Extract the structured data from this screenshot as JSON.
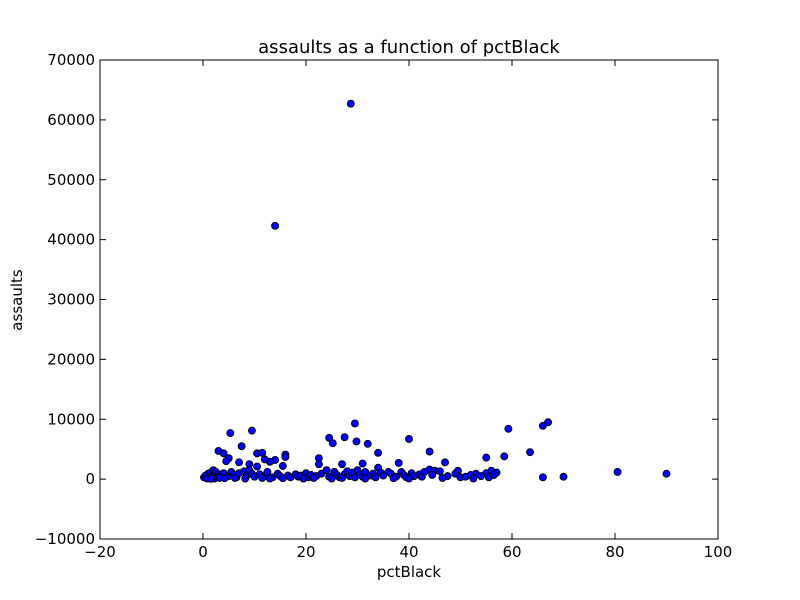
{
  "chart_data": {
    "type": "scatter",
    "title": "assaults as a function of pctBlack",
    "xlabel": "pctBlack",
    "ylabel": "assaults",
    "xlim": [
      -20,
      100
    ],
    "ylim": [
      -10000,
      70000
    ],
    "xticks": [
      "−20",
      "0",
      "20",
      "40",
      "60",
      "80",
      "100"
    ],
    "yticks": [
      "−10000",
      "0",
      "10000",
      "20000",
      "30000",
      "40000",
      "50000",
      "60000",
      "70000"
    ],
    "grid": false,
    "color": "#0000ff",
    "points": [
      [
        28.7,
        62700
      ],
      [
        14.0,
        42300
      ],
      [
        29.5,
        9300
      ],
      [
        67.0,
        9500
      ],
      [
        66.0,
        8900
      ],
      [
        59.3,
        8400
      ],
      [
        9.5,
        8100
      ],
      [
        5.3,
        7700
      ],
      [
        24.5,
        6900
      ],
      [
        27.5,
        7000
      ],
      [
        29.8,
        6300
      ],
      [
        32.0,
        5900
      ],
      [
        25.2,
        6000
      ],
      [
        40.0,
        6700
      ],
      [
        7.5,
        5500
      ],
      [
        63.5,
        4500
      ],
      [
        44.0,
        4600
      ],
      [
        34.0,
        4400
      ],
      [
        3.0,
        4700
      ],
      [
        4.0,
        4300
      ],
      [
        10.5,
        4300
      ],
      [
        11.5,
        4400
      ],
      [
        16.0,
        4100
      ],
      [
        16.0,
        3700
      ],
      [
        58.5,
        3800
      ],
      [
        55.0,
        3600
      ],
      [
        22.5,
        3500
      ],
      [
        12.0,
        3300
      ],
      [
        14.0,
        3200
      ],
      [
        13.0,
        2900
      ],
      [
        5.0,
        3500
      ],
      [
        4.5,
        3000
      ],
      [
        7.0,
        2800
      ],
      [
        9.0,
        2500
      ],
      [
        22.5,
        2500
      ],
      [
        27.0,
        2500
      ],
      [
        31.0,
        2600
      ],
      [
        38.0,
        2700
      ],
      [
        47.0,
        2800
      ],
      [
        15.5,
        2200
      ],
      [
        10.5,
        2100
      ],
      [
        34.0,
        1900
      ],
      [
        36.0,
        1200
      ],
      [
        44.0,
        1600
      ],
      [
        45.0,
        1400
      ],
      [
        46.0,
        1300
      ],
      [
        49.5,
        1400
      ],
      [
        53.0,
        900
      ],
      [
        55.0,
        1000
      ],
      [
        56.0,
        1400
      ],
      [
        57.0,
        1100
      ],
      [
        80.5,
        1200
      ],
      [
        90.0,
        900
      ],
      [
        70.0,
        400
      ],
      [
        66.0,
        300
      ],
      [
        50.0,
        300
      ],
      [
        1.0,
        900
      ],
      [
        1.5,
        1100
      ],
      [
        2.0,
        1500
      ],
      [
        2.5,
        1200
      ],
      [
        3.0,
        800
      ],
      [
        3.5,
        600
      ],
      [
        4.0,
        1000
      ],
      [
        5.0,
        500
      ],
      [
        5.5,
        1200
      ],
      [
        6.0,
        700
      ],
      [
        6.5,
        300
      ],
      [
        7.0,
        1000
      ],
      [
        8.0,
        1300
      ],
      [
        8.5,
        600
      ],
      [
        9.0,
        1500
      ],
      [
        9.5,
        900
      ],
      [
        10.0,
        400
      ],
      [
        11.0,
        800
      ],
      [
        12.0,
        500
      ],
      [
        12.5,
        1200
      ],
      [
        13.5,
        300
      ],
      [
        14.5,
        900
      ],
      [
        15.0,
        500
      ],
      [
        16.5,
        600
      ],
      [
        17.0,
        300
      ],
      [
        18.0,
        800
      ],
      [
        18.5,
        400
      ],
      [
        19.0,
        600
      ],
      [
        20.0,
        1000
      ],
      [
        20.5,
        300
      ],
      [
        21.0,
        700
      ],
      [
        22.0,
        500
      ],
      [
        23.0,
        900
      ],
      [
        24.0,
        1500
      ],
      [
        24.5,
        400
      ],
      [
        25.5,
        1200
      ],
      [
        26.0,
        700
      ],
      [
        26.5,
        300
      ],
      [
        27.5,
        800
      ],
      [
        28.0,
        1300
      ],
      [
        28.5,
        500
      ],
      [
        29.0,
        1100
      ],
      [
        29.5,
        300
      ],
      [
        30.0,
        1500
      ],
      [
        30.5,
        800
      ],
      [
        31.0,
        400
      ],
      [
        31.5,
        1200
      ],
      [
        32.5,
        600
      ],
      [
        33.0,
        900
      ],
      [
        33.5,
        300
      ],
      [
        34.5,
        1100
      ],
      [
        35.0,
        600
      ],
      [
        36.5,
        900
      ],
      [
        37.5,
        400
      ],
      [
        38.5,
        1200
      ],
      [
        39.0,
        700
      ],
      [
        39.5,
        300
      ],
      [
        40.5,
        1000
      ],
      [
        41.0,
        500
      ],
      [
        42.0,
        800
      ],
      [
        42.5,
        400
      ],
      [
        43.0,
        1200
      ],
      [
        44.5,
        700
      ],
      [
        47.5,
        500
      ],
      [
        49.0,
        900
      ],
      [
        51.0,
        400
      ],
      [
        52.0,
        700
      ],
      [
        54.0,
        500
      ],
      [
        55.5,
        300
      ],
      [
        56.5,
        700
      ],
      [
        0.2,
        300
      ],
      [
        0.5,
        600
      ],
      [
        1.2,
        200
      ],
      [
        1.8,
        400
      ],
      [
        2.2,
        100
      ],
      [
        2.8,
        300
      ],
      [
        3.2,
        200
      ],
      [
        4.2,
        150
      ],
      [
        0.8,
        100
      ],
      [
        1.5,
        50
      ],
      [
        6.2,
        200
      ],
      [
        8.2,
        100
      ],
      [
        11.5,
        200
      ],
      [
        13.0,
        100
      ],
      [
        15.5,
        150
      ],
      [
        19.5,
        100
      ],
      [
        21.5,
        200
      ],
      [
        25.0,
        100
      ],
      [
        27.0,
        200
      ],
      [
        31.5,
        100
      ],
      [
        37.0,
        150
      ],
      [
        40.0,
        100
      ],
      [
        46.5,
        200
      ],
      [
        52.5,
        100
      ]
    ]
  }
}
